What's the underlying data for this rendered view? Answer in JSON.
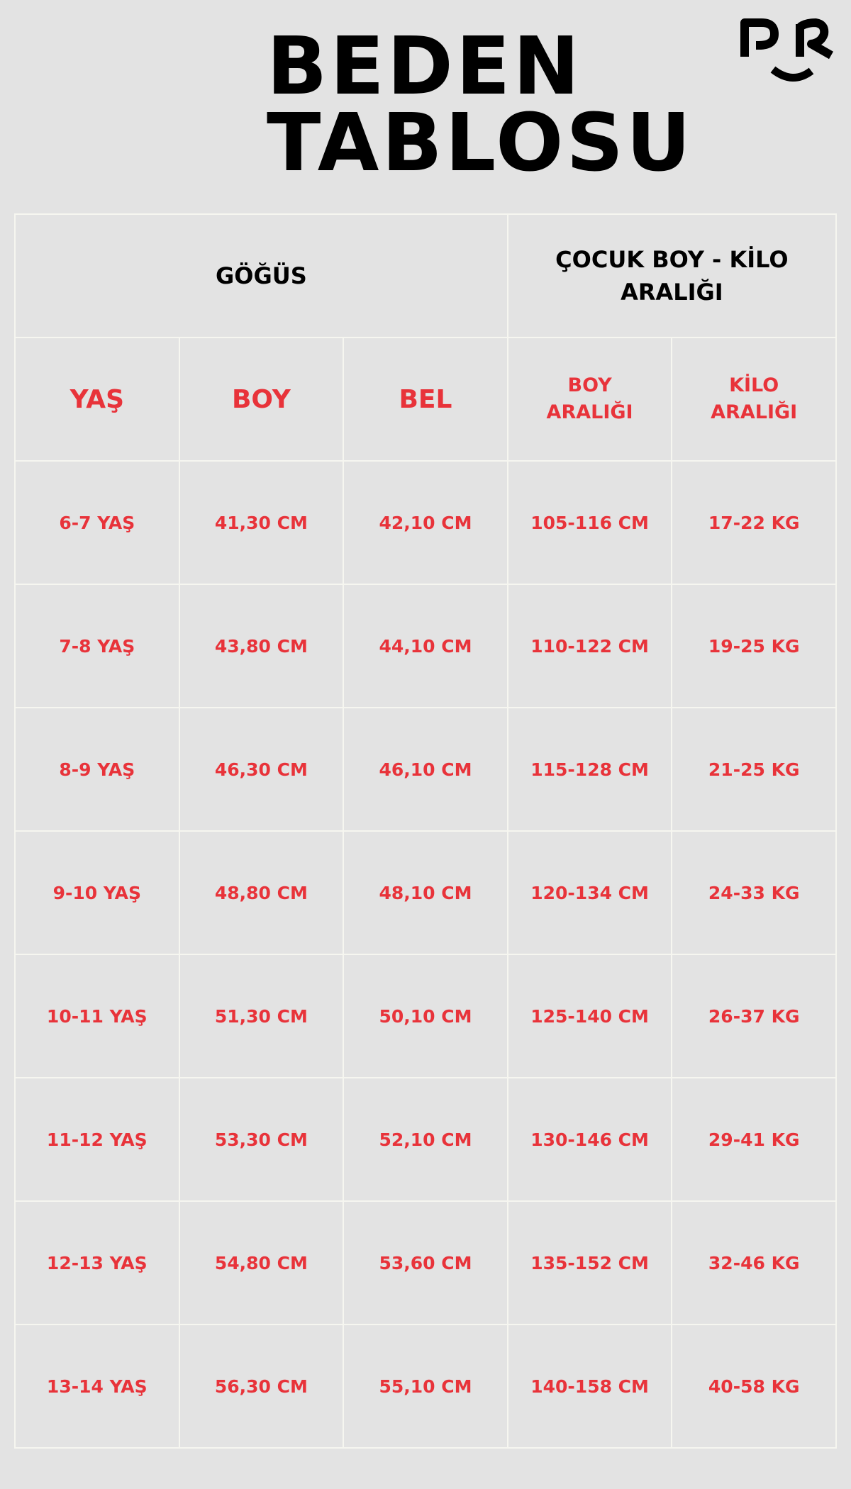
{
  "title": {
    "line1": "BEDEN",
    "line2": "TABLOSU"
  },
  "logo": {
    "text": "PR",
    "icon": "smile-logo"
  },
  "colors": {
    "accent": "#e8333a",
    "background": "#e3e3e3",
    "grid": "#f6f6f0"
  },
  "table": {
    "group_headers": [
      "GÖĞÜS",
      "ÇOCUK BOY - KİLO ARALIĞI"
    ],
    "columns": [
      "YAŞ",
      "BOY",
      "BEL",
      "BOY ARALIĞI",
      "KİLO ARALIĞI"
    ],
    "rows": [
      [
        "6-7 YAŞ",
        "41,30 CM",
        "42,10 CM",
        "105-116 CM",
        "17-22 KG"
      ],
      [
        "7-8 YAŞ",
        "43,80 CM",
        "44,10 CM",
        "110-122 CM",
        "19-25 KG"
      ],
      [
        "8-9 YAŞ",
        "46,30 CM",
        "46,10 CM",
        "115-128 CM",
        "21-25 KG"
      ],
      [
        "9-10 YAŞ",
        "48,80 CM",
        "48,10 CM",
        "120-134 CM",
        "24-33 KG"
      ],
      [
        "10-11 YAŞ",
        "51,30 CM",
        "50,10 CM",
        "125-140 CM",
        "26-37 KG"
      ],
      [
        "11-12 YAŞ",
        "53,30 CM",
        "52,10 CM",
        "130-146 CM",
        "29-41 KG"
      ],
      [
        "12-13 YAŞ",
        "54,80 CM",
        "53,60 CM",
        "135-152 CM",
        "32-46 KG"
      ],
      [
        "13-14 YAŞ",
        "56,30 CM",
        "55,10 CM",
        "140-158 CM",
        "40-58 KG"
      ]
    ]
  }
}
